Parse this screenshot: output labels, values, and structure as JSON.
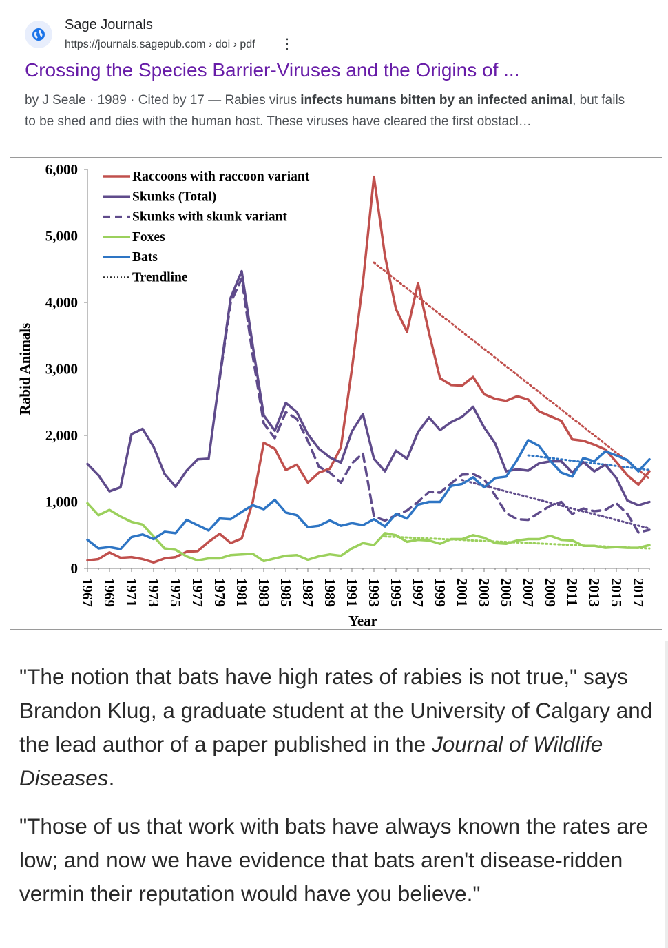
{
  "result": {
    "site_name": "Sage Journals",
    "url": "https://journals.sagepub.com › doi › pdf",
    "title": "Crossing the Species Barrier-Viruses and the Origins of ...",
    "meta": "by J Seale · 1989 · Cited by 17 — ",
    "snippet_1": "Rabies virus ",
    "snippet_bold_1": "infects humans bitten by an infected animal",
    "snippet_2": ", but fails to be shed and dies with the human host. These viruses have cleared the first obstacl…",
    "icons": {
      "favicon": "globe-icon",
      "menu": "more-vert-icon"
    }
  },
  "chart_data": {
    "type": "line",
    "xlabel": "Year",
    "ylabel": "Rabid Animals",
    "ylim": [
      0,
      6000
    ],
    "yticks": [
      "0",
      "1,000",
      "2,000",
      "3,000",
      "4,000",
      "5,000",
      "6,000"
    ],
    "ytick_values": [
      0,
      1000,
      2000,
      3000,
      4000,
      5000,
      6000
    ],
    "xlim": [
      1967,
      2018
    ],
    "xticks": [
      "1967",
      "1969",
      "1971",
      "1973",
      "1975",
      "1977",
      "1979",
      "1981",
      "1983",
      "1985",
      "1987",
      "1989",
      "1991",
      "1993",
      "1995",
      "1997",
      "1999",
      "2001",
      "2003",
      "2005",
      "2007",
      "2009",
      "2011",
      "2013",
      "2015",
      "2017"
    ],
    "legend_position": "top-left",
    "legend": [
      "Raccoons with raccoon variant",
      "Skunks (Total)",
      "Skunks with skunk variant",
      "Foxes",
      "Bats",
      "Trendline"
    ],
    "colors": {
      "raccoon": "#c0504d",
      "skunk": "#5f4b8b",
      "fox": "#9bd05c",
      "bat": "#2e75c4",
      "grid": "#888888"
    },
    "x": [
      1967,
      1968,
      1969,
      1970,
      1971,
      1972,
      1973,
      1974,
      1975,
      1976,
      1977,
      1978,
      1979,
      1980,
      1981,
      1982,
      1983,
      1984,
      1985,
      1986,
      1987,
      1988,
      1989,
      1990,
      1991,
      1992,
      1993,
      1994,
      1995,
      1996,
      1997,
      1998,
      1999,
      2000,
      2001,
      2002,
      2003,
      2004,
      2005,
      2006,
      2007,
      2008,
      2009,
      2010,
      2011,
      2012,
      2013,
      2014,
      2015,
      2016,
      2017,
      2018
    ],
    "series": [
      {
        "name": "Raccoons with raccoon variant",
        "color": "#c0504d",
        "dash": "solid",
        "values": [
          120,
          140,
          240,
          160,
          170,
          140,
          90,
          150,
          170,
          250,
          260,
          400,
          520,
          380,
          450,
          1000,
          1890,
          1800,
          1480,
          1560,
          1290,
          1440,
          1500,
          1820,
          3000,
          4300,
          5890,
          4700,
          3900,
          3560,
          4290,
          3540,
          2860,
          2760,
          2750,
          2880,
          2620,
          2550,
          2520,
          2590,
          2540,
          2360,
          2290,
          2220,
          1940,
          1920,
          1860,
          1790,
          1600,
          1400,
          1260,
          1460
        ]
      },
      {
        "name": "Skunks (Total)",
        "color": "#5f4b8b",
        "dash": "solid",
        "values": [
          1570,
          1400,
          1160,
          1220,
          2020,
          2100,
          1830,
          1420,
          1230,
          1470,
          1640,
          1650,
          2880,
          4070,
          4470,
          3350,
          2300,
          2070,
          2490,
          2350,
          2020,
          1800,
          1670,
          1590,
          2060,
          2320,
          1650,
          1460,
          1770,
          1650,
          2050,
          2270,
          2080,
          2200,
          2280,
          2430,
          2120,
          1880,
          1460,
          1490,
          1470,
          1580,
          1610,
          1610,
          1440,
          1600,
          1460,
          1560,
          1360,
          1020,
          950,
          1000
        ]
      },
      {
        "name": "Skunks with skunk variant",
        "color": "#5f4b8b",
        "dash": "dashed",
        "values": [
          null,
          null,
          null,
          null,
          null,
          null,
          null,
          null,
          null,
          null,
          null,
          null,
          2850,
          4000,
          4360,
          3200,
          2180,
          1960,
          2350,
          2250,
          1920,
          1530,
          1440,
          1290,
          1580,
          1730,
          780,
          720,
          800,
          870,
          1000,
          1150,
          1140,
          1280,
          1410,
          1420,
          1340,
          1100,
          830,
          740,
          730,
          840,
          940,
          1000,
          820,
          900,
          860,
          880,
          980,
          820,
          540,
          580
        ]
      },
      {
        "name": "Foxes",
        "color": "#9bd05c",
        "dash": "solid",
        "values": [
          980,
          800,
          880,
          780,
          700,
          660,
          480,
          300,
          280,
          180,
          120,
          150,
          150,
          200,
          210,
          220,
          110,
          150,
          190,
          200,
          130,
          180,
          210,
          190,
          300,
          380,
          350,
          530,
          500,
          400,
          430,
          420,
          370,
          440,
          440,
          500,
          460,
          380,
          370,
          420,
          440,
          440,
          490,
          430,
          420,
          340,
          340,
          310,
          320,
          310,
          310,
          350
        ]
      },
      {
        "name": "Bats",
        "color": "#2e75c4",
        "dash": "solid",
        "values": [
          430,
          300,
          320,
          290,
          470,
          510,
          440,
          550,
          530,
          730,
          650,
          570,
          750,
          740,
          850,
          950,
          890,
          1030,
          840,
          800,
          620,
          640,
          720,
          640,
          680,
          650,
          740,
          630,
          820,
          750,
          960,
          1000,
          1000,
          1240,
          1270,
          1370,
          1220,
          1360,
          1380,
          1630,
          1930,
          1840,
          1620,
          1440,
          1380,
          1660,
          1610,
          1760,
          1700,
          1630,
          1460,
          1640
        ]
      }
    ],
    "trendlines": [
      {
        "series": "Raccoons with raccoon variant",
        "from": [
          1993,
          4600
        ],
        "to": [
          2018,
          1350
        ]
      },
      {
        "series": "Skunks with skunk variant",
        "from": [
          2001,
          1330
        ],
        "to": [
          2018,
          600
        ]
      },
      {
        "series": "Bats",
        "from": [
          2007,
          1700
        ],
        "to": [
          2018,
          1480
        ]
      },
      {
        "series": "Foxes",
        "from": [
          1994,
          480
        ],
        "to": [
          2018,
          300
        ]
      }
    ]
  },
  "article": {
    "p1_before": "\"The notion that bats have high rates of rabies is not true,\" says Brandon Klug, a graduate student at the University of Calgary and the lead author of a paper published in the ",
    "p1_journal": "Journal of Wildlife Diseases",
    "p1_after": ".",
    "p2": "\"Those of us that work with bats have always known the rates are low; and now we have evidence that bats aren't disease-ridden vermin their reputation would have you believe.\""
  }
}
